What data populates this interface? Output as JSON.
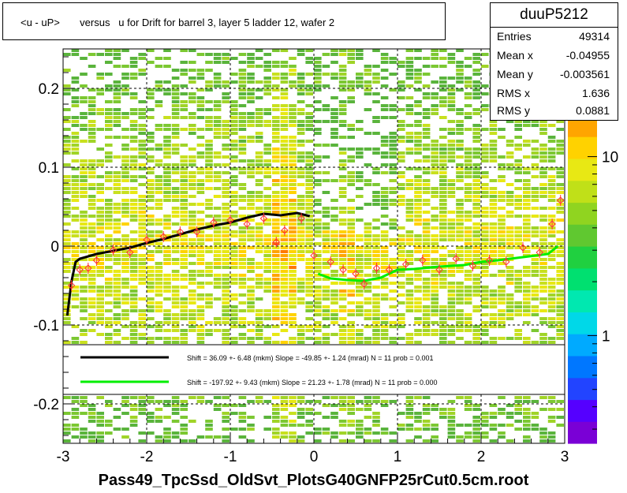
{
  "title": "<u - uP>       versus   u for Drift for barrel 3, layer 5 ladder 12, wafer 2",
  "footer": "Pass49_TpcSsd_OldSvt_PlotsG40GNFP25rCut0.5cm.root",
  "stats": {
    "name": "duuP5212",
    "rows": [
      {
        "label": "Entries",
        "value": "49314"
      },
      {
        "label": "Mean x",
        "value": "-0.04955"
      },
      {
        "label": "Mean y",
        "value": "-0.003561"
      },
      {
        "label": "RMS x",
        "value": "1.636"
      },
      {
        "label": "RMS y",
        "value": "0.0881"
      }
    ]
  },
  "legend": {
    "entries": [
      {
        "text": "Shift =    36.09 +- 6.48 (mkm) Slope =    -49.85 +- 1.24 (mrad)  N = 11 prob = 0.001",
        "color": "#000000"
      },
      {
        "text": "Shift =  -197.92 +- 9.43 (mkm) Slope =    21.23 +- 1.78 (mrad)  N = 11 prob = 0.000",
        "color": "#00ee00"
      }
    ]
  },
  "colorbar": {
    "labels": [
      {
        "text": "1",
        "value": 1
      },
      {
        "text": "10",
        "value": 10
      }
    ]
  },
  "chart_data": {
    "type": "heatmap",
    "title": "<u - uP>       versus   u for Drift for barrel 3, layer 5 ladder 12, wafer 2",
    "xlabel": "",
    "ylabel": "",
    "xlim": [
      -3,
      3
    ],
    "ylim": [
      -0.25,
      0.25
    ],
    "x_ticks": [
      {
        "value": -3,
        "label": "-3"
      },
      {
        "value": -2,
        "label": "-2"
      },
      {
        "value": -1,
        "label": "-1"
      },
      {
        "value": 0,
        "label": "0"
      },
      {
        "value": 1,
        "label": "1"
      },
      {
        "value": 2,
        "label": "2"
      },
      {
        "value": 3,
        "label": "3"
      }
    ],
    "y_ticks": [
      {
        "value": -0.2,
        "label": "-0.2"
      },
      {
        "value": -0.1,
        "label": "-0.1"
      },
      {
        "value": 0,
        "label": "0"
      },
      {
        "value": 0.1,
        "label": "0.1"
      },
      {
        "value": 0.2,
        "label": "0.2"
      }
    ],
    "grid": true,
    "z_scale": "log",
    "series": [
      {
        "color": "#000000",
        "x": [
          -2.95,
          -2.9,
          -2.85,
          -2.8,
          -2.6,
          -2.4,
          -2.2,
          -2.0,
          -1.8,
          -1.6,
          -1.4,
          -1.2,
          -1.0,
          -0.8,
          -0.6,
          -0.4,
          -0.2,
          -0.05
        ],
        "y": [
          -0.088,
          -0.045,
          -0.02,
          -0.016,
          -0.01,
          -0.006,
          -0.002,
          0.004,
          0.009,
          0.015,
          0.021,
          0.026,
          0.03,
          0.036,
          0.041,
          0.039,
          0.042,
          0.038
        ]
      },
      {
        "color": "#00ee00",
        "x": [
          0.05,
          0.2,
          0.4,
          0.6,
          0.8,
          1.0,
          1.2,
          1.5,
          1.8,
          2.0,
          2.2,
          2.5,
          2.8,
          2.92
        ],
        "y": [
          -0.035,
          -0.041,
          -0.043,
          -0.044,
          -0.04,
          -0.03,
          -0.029,
          -0.026,
          -0.024,
          -0.02,
          -0.018,
          -0.014,
          -0.01,
          0.0
        ]
      }
    ],
    "profile_points": [
      {
        "x": -2.9,
        "y": -0.05
      },
      {
        "x": -2.8,
        "y": -0.03
      },
      {
        "x": -2.7,
        "y": -0.028
      },
      {
        "x": -2.6,
        "y": -0.018
      },
      {
        "x": -2.4,
        "y": -0.005
      },
      {
        "x": -2.2,
        "y": -0.008
      },
      {
        "x": -2.0,
        "y": 0.008
      },
      {
        "x": -1.8,
        "y": 0.012
      },
      {
        "x": -1.6,
        "y": 0.018
      },
      {
        "x": -1.4,
        "y": 0.018
      },
      {
        "x": -1.2,
        "y": 0.03
      },
      {
        "x": -1.0,
        "y": 0.033
      },
      {
        "x": -0.8,
        "y": 0.028
      },
      {
        "x": -0.6,
        "y": 0.035
      },
      {
        "x": -0.45,
        "y": 0.005
      },
      {
        "x": -0.35,
        "y": 0.02
      },
      {
        "x": -0.15,
        "y": 0.035
      },
      {
        "x": 0.0,
        "y": -0.012
      },
      {
        "x": 0.2,
        "y": -0.02
      },
      {
        "x": 0.35,
        "y": -0.03
      },
      {
        "x": 0.5,
        "y": -0.035
      },
      {
        "x": 0.6,
        "y": -0.048
      },
      {
        "x": 0.75,
        "y": -0.028
      },
      {
        "x": 0.9,
        "y": -0.03
      },
      {
        "x": 1.1,
        "y": -0.023
      },
      {
        "x": 1.3,
        "y": -0.018
      },
      {
        "x": 1.5,
        "y": -0.03
      },
      {
        "x": 1.7,
        "y": -0.016
      },
      {
        "x": 1.9,
        "y": -0.025
      },
      {
        "x": 2.1,
        "y": -0.018
      },
      {
        "x": 2.3,
        "y": -0.02
      },
      {
        "x": 2.5,
        "y": -0.002
      },
      {
        "x": 2.7,
        "y": -0.008
      },
      {
        "x": 2.85,
        "y": 0.028
      },
      {
        "x": 2.95,
        "y": 0.058
      }
    ]
  }
}
